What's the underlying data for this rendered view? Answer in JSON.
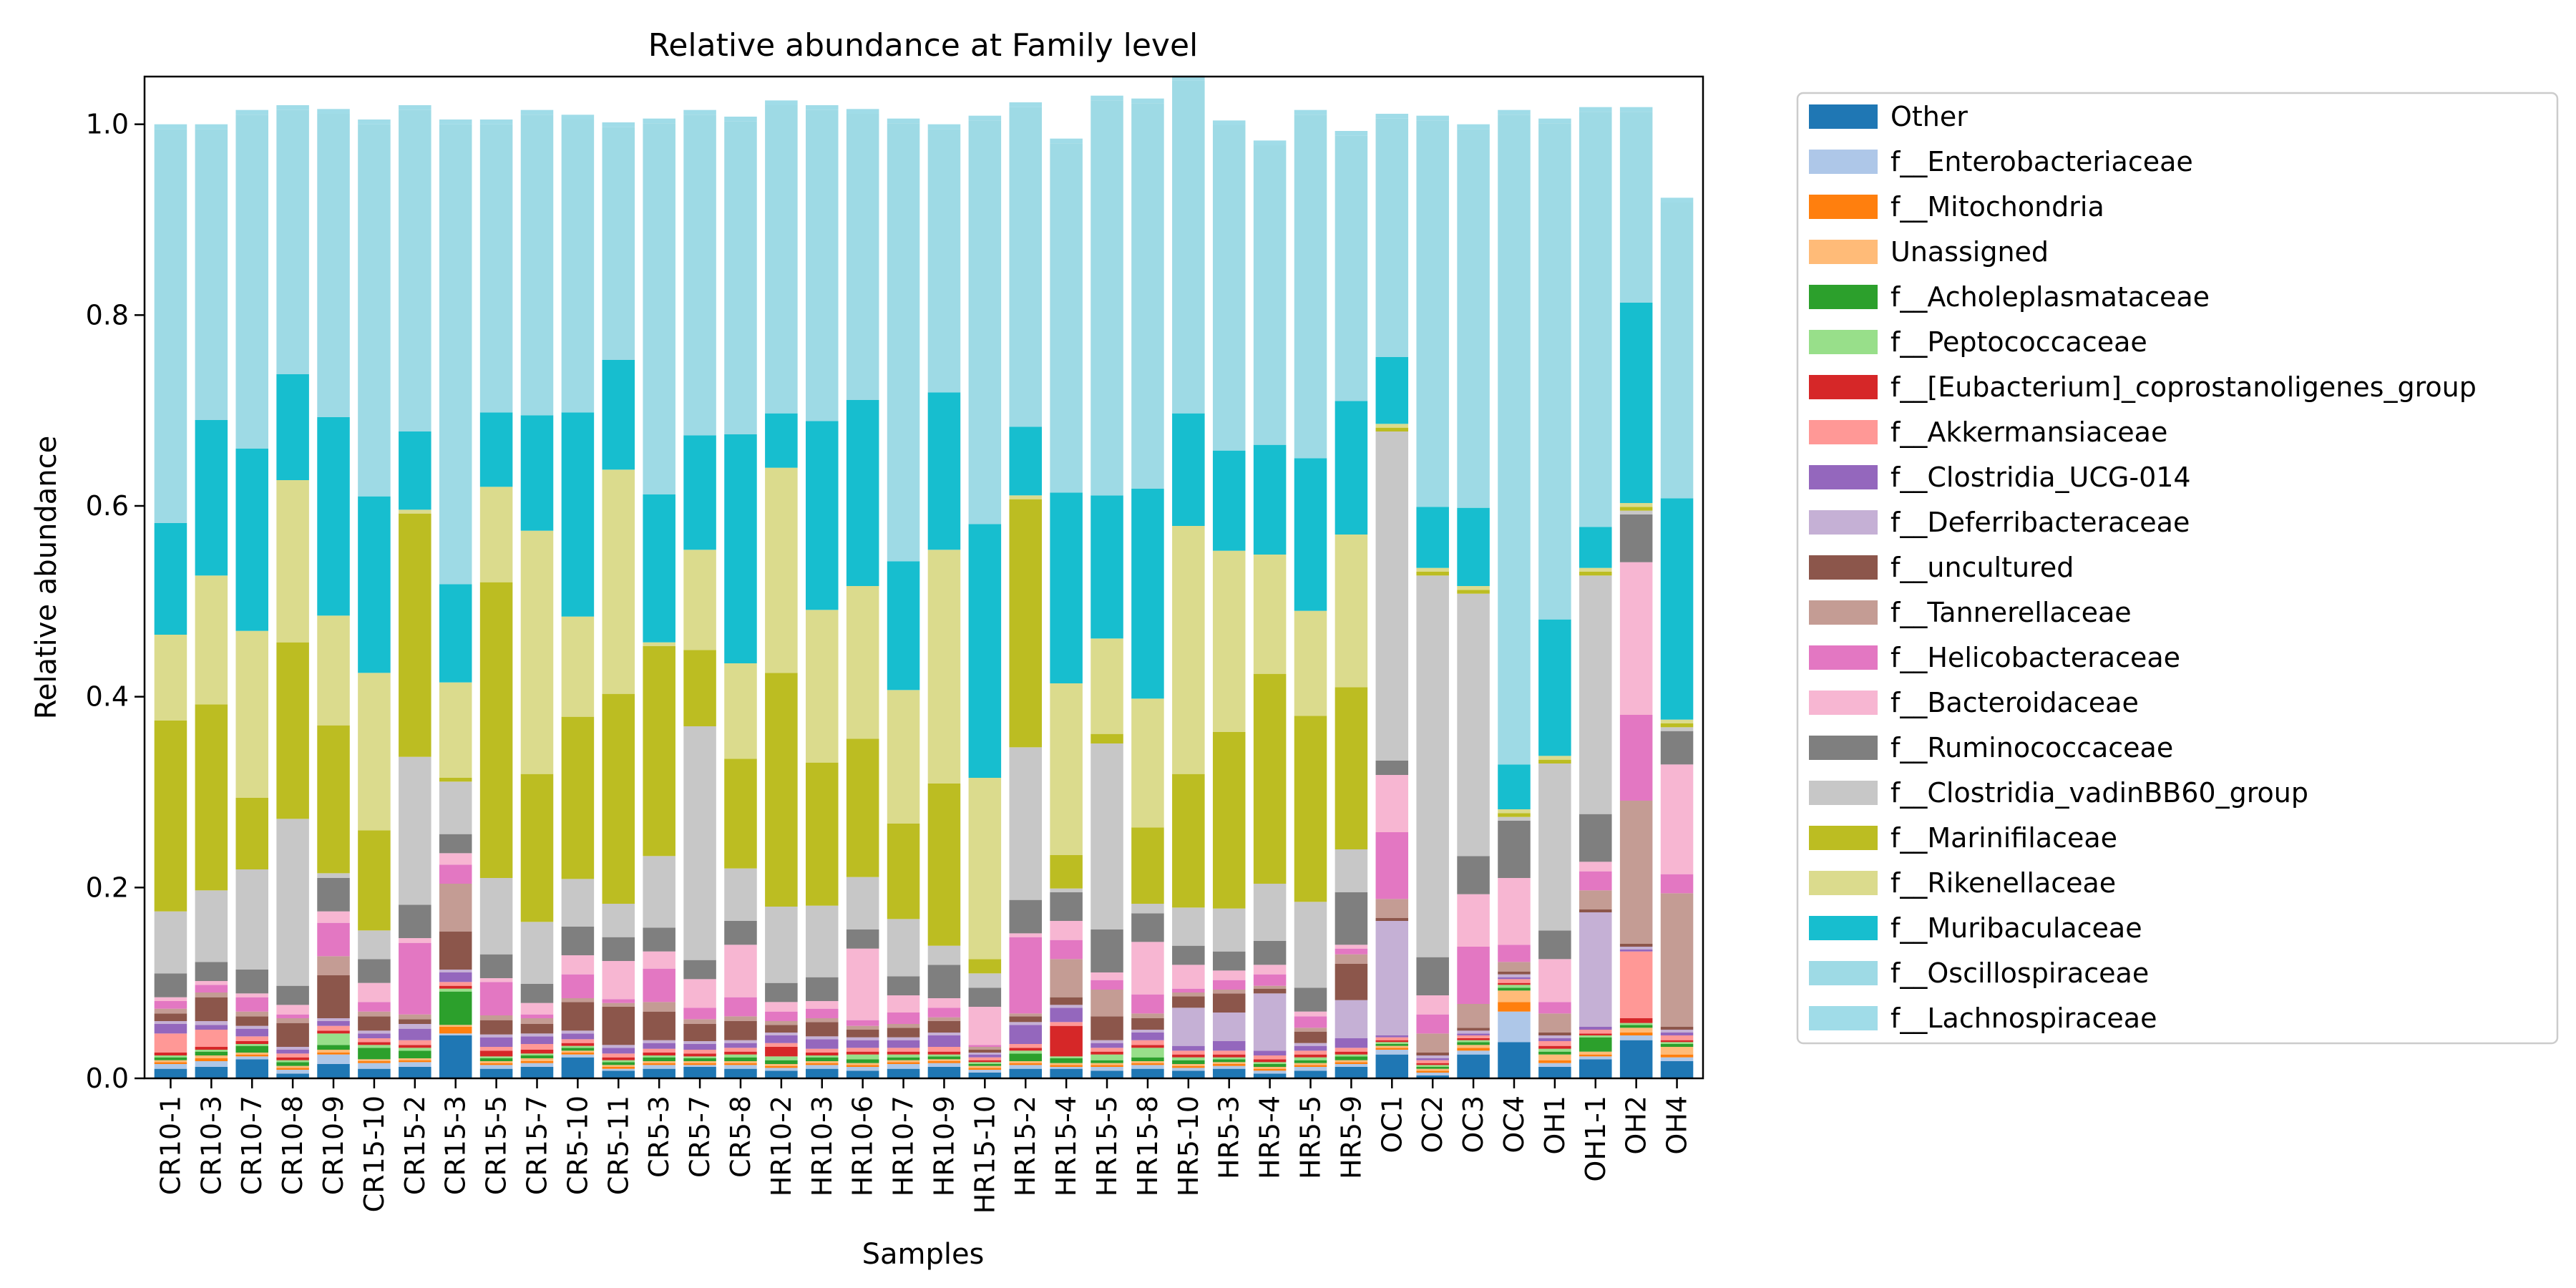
{
  "chart_data": {
    "type": "bar",
    "stacked": true,
    "title": "Relative abundance at Family level",
    "xlabel": "Samples",
    "ylabel": "Relative abundance",
    "ylim": [
      0,
      1.05
    ],
    "yticks": [
      "0.0",
      "0.2",
      "0.4",
      "0.6",
      "0.8",
      "1.0"
    ],
    "legend_position": "outside-right",
    "categories": [
      "CR10-1",
      "CR10-3",
      "CR10-7",
      "CR10-8",
      "CR10-9",
      "CR15-10",
      "CR15-2",
      "CR15-3",
      "CR15-5",
      "CR15-7",
      "CR5-10",
      "CR5-11",
      "CR5-3",
      "CR5-7",
      "CR5-8",
      "HR10-2",
      "HR10-3",
      "HR10-6",
      "HR10-7",
      "HR10-9",
      "HR15-10",
      "HR15-2",
      "HR15-4",
      "HR15-5",
      "HR15-8",
      "HR5-10",
      "HR5-3",
      "HR5-4",
      "HR5-5",
      "HR5-9",
      "OC1",
      "OC2",
      "OC3",
      "OC4",
      "OH1",
      "OH1-1",
      "OH2",
      "OH4"
    ],
    "series": [
      {
        "name": "Other",
        "color": "#1f77b4",
        "values": [
          0.01,
          0.012,
          0.02,
          0.005,
          0.015,
          0.01,
          0.012,
          0.045,
          0.01,
          0.012,
          0.022,
          0.008,
          0.01,
          0.012,
          0.01,
          0.008,
          0.01,
          0.008,
          0.01,
          0.012,
          0.006,
          0.01,
          0.01,
          0.008,
          0.01,
          0.008,
          0.01,
          0.005,
          0.008,
          0.012,
          0.025,
          0.003,
          0.025,
          0.038,
          0.012,
          0.02,
          0.04,
          0.018
        ]
      },
      {
        "name": "f__Enterobacteriaceae",
        "color": "#aec7e8",
        "values": [
          0.005,
          0.006,
          0.003,
          0.004,
          0.01,
          0.006,
          0.005,
          0.002,
          0.004,
          0.004,
          0.003,
          0.002,
          0.004,
          0.002,
          0.004,
          0.003,
          0.004,
          0.004,
          0.005,
          0.004,
          0.003,
          0.004,
          0.002,
          0.004,
          0.004,
          0.003,
          0.003,
          0.003,
          0.004,
          0.003,
          0.005,
          0.003,
          0.004,
          0.032,
          0.004,
          0.003,
          0.005,
          0.004
        ]
      },
      {
        "name": "f__Mitochondria",
        "color": "#ff7f0e",
        "values": [
          0.002,
          0.003,
          0.002,
          0.002,
          0.002,
          0.002,
          0.002,
          0.007,
          0.002,
          0.002,
          0.002,
          0.002,
          0.002,
          0.002,
          0.002,
          0.002,
          0.002,
          0.002,
          0.002,
          0.002,
          0.002,
          0.002,
          0.002,
          0.002,
          0.002,
          0.002,
          0.002,
          0.002,
          0.002,
          0.002,
          0.002,
          0.002,
          0.003,
          0.01,
          0.003,
          0.002,
          0.003,
          0.003
        ]
      },
      {
        "name": "Unassigned",
        "color": "#ffbb78",
        "values": [
          0.002,
          0.003,
          0.002,
          0.002,
          0.003,
          0.002,
          0.002,
          0.002,
          0.002,
          0.003,
          0.002,
          0.002,
          0.002,
          0.002,
          0.002,
          0.002,
          0.002,
          0.002,
          0.002,
          0.002,
          0.002,
          0.002,
          0.002,
          0.002,
          0.002,
          0.002,
          0.002,
          0.002,
          0.002,
          0.002,
          0.002,
          0.002,
          0.003,
          0.012,
          0.006,
          0.003,
          0.005,
          0.008
        ]
      },
      {
        "name": "f__Acholeplasmataceae",
        "color": "#2ca02c",
        "values": [
          0.003,
          0.004,
          0.007,
          0.004,
          0.005,
          0.012,
          0.008,
          0.035,
          0.003,
          0.003,
          0.003,
          0.003,
          0.004,
          0.003,
          0.004,
          0.004,
          0.004,
          0.004,
          0.003,
          0.003,
          0.002,
          0.008,
          0.005,
          0.003,
          0.004,
          0.004,
          0.003,
          0.003,
          0.003,
          0.004,
          0.002,
          0.002,
          0.003,
          0.003,
          0.003,
          0.015,
          0.003,
          0.003
        ]
      },
      {
        "name": "f__Peptococcaceae",
        "color": "#98df8a",
        "values": [
          0.002,
          0.002,
          0.002,
          0.002,
          0.012,
          0.003,
          0.003,
          0.003,
          0.002,
          0.002,
          0.002,
          0.002,
          0.002,
          0.002,
          0.003,
          0.004,
          0.002,
          0.005,
          0.003,
          0.002,
          0.002,
          0.003,
          0.002,
          0.006,
          0.01,
          0.003,
          0.002,
          0.002,
          0.003,
          0.002,
          0.002,
          0.002,
          0.002,
          0.003,
          0.003,
          0.002,
          0.002,
          0.002
        ]
      },
      {
        "name": "f__[Eubacterium]_coprostanoligenes_group",
        "color": "#d62728",
        "values": [
          0.003,
          0.003,
          0.003,
          0.003,
          0.003,
          0.003,
          0.003,
          0.003,
          0.006,
          0.004,
          0.003,
          0.003,
          0.003,
          0.003,
          0.003,
          0.01,
          0.003,
          0.003,
          0.003,
          0.003,
          0.002,
          0.003,
          0.032,
          0.003,
          0.003,
          0.003,
          0.003,
          0.003,
          0.003,
          0.003,
          0.002,
          0.002,
          0.002,
          0.002,
          0.003,
          0.002,
          0.005,
          0.002
        ]
      },
      {
        "name": "f__Akkermansiaceae",
        "color": "#ff9896",
        "values": [
          0.02,
          0.018,
          0.005,
          0.004,
          0.005,
          0.004,
          0.005,
          0.004,
          0.004,
          0.006,
          0.004,
          0.004,
          0.004,
          0.004,
          0.004,
          0.004,
          0.004,
          0.004,
          0.004,
          0.005,
          0.003,
          0.004,
          0.004,
          0.004,
          0.005,
          0.004,
          0.004,
          0.004,
          0.004,
          0.004,
          0.003,
          0.003,
          0.003,
          0.004,
          0.005,
          0.004,
          0.07,
          0.005
        ]
      },
      {
        "name": "f__Clostridia_UCG-014",
        "color": "#9467bd",
        "values": [
          0.01,
          0.005,
          0.008,
          0.004,
          0.005,
          0.005,
          0.012,
          0.01,
          0.01,
          0.008,
          0.006,
          0.006,
          0.006,
          0.006,
          0.005,
          0.008,
          0.01,
          0.008,
          0.008,
          0.012,
          0.003,
          0.02,
          0.015,
          0.005,
          0.008,
          0.005,
          0.01,
          0.005,
          0.005,
          0.01,
          0.002,
          0.002,
          0.002,
          0.002,
          0.003,
          0.003,
          0.002,
          0.003
        ]
      },
      {
        "name": "f__Deferribacteraceae",
        "color": "#c5b0d5",
        "values": [
          0.003,
          0.004,
          0.003,
          0.003,
          0.003,
          0.003,
          0.005,
          0.003,
          0.003,
          0.003,
          0.003,
          0.003,
          0.003,
          0.003,
          0.003,
          0.003,
          0.003,
          0.003,
          0.003,
          0.003,
          0.002,
          0.003,
          0.003,
          0.003,
          0.003,
          0.04,
          0.03,
          0.06,
          0.003,
          0.04,
          0.12,
          0.003,
          0.003,
          0.003,
          0.003,
          0.12,
          0.003,
          0.003
        ]
      },
      {
        "name": "f__uncultured",
        "color": "#8c564b",
        "values": [
          0.008,
          0.025,
          0.01,
          0.025,
          0.045,
          0.015,
          0.005,
          0.04,
          0.015,
          0.01,
          0.03,
          0.04,
          0.03,
          0.018,
          0.02,
          0.008,
          0.015,
          0.008,
          0.01,
          0.012,
          0.003,
          0.006,
          0.008,
          0.025,
          0.012,
          0.012,
          0.02,
          0.005,
          0.012,
          0.038,
          0.003,
          0.003,
          0.003,
          0.003,
          0.003,
          0.003,
          0.003,
          0.003
        ]
      },
      {
        "name": "f__Tannerellaceae",
        "color": "#c49c94",
        "values": [
          0.005,
          0.005,
          0.005,
          0.005,
          0.02,
          0.005,
          0.005,
          0.05,
          0.005,
          0.006,
          0.004,
          0.004,
          0.01,
          0.005,
          0.005,
          0.004,
          0.004,
          0.004,
          0.004,
          0.004,
          0.003,
          0.003,
          0.04,
          0.028,
          0.005,
          0.004,
          0.004,
          0.003,
          0.004,
          0.01,
          0.02,
          0.02,
          0.025,
          0.01,
          0.02,
          0.02,
          0.15,
          0.14
        ]
      },
      {
        "name": "f__Helicobacteraceae",
        "color": "#e377c2",
        "values": [
          0.008,
          0.008,
          0.015,
          0.004,
          0.035,
          0.01,
          0.075,
          0.02,
          0.035,
          0.004,
          0.025,
          0.004,
          0.035,
          0.012,
          0.02,
          0.01,
          0.01,
          0.006,
          0.012,
          0.01,
          0.002,
          0.08,
          0.02,
          0.01,
          0.02,
          0.004,
          0.01,
          0.012,
          0.012,
          0.006,
          0.07,
          0.02,
          0.06,
          0.018,
          0.012,
          0.02,
          0.09,
          0.02
        ]
      },
      {
        "name": "f__Bacteroidaceae",
        "color": "#f7b6d2",
        "values": [
          0.004,
          0.004,
          0.004,
          0.01,
          0.012,
          0.02,
          0.005,
          0.012,
          0.004,
          0.012,
          0.02,
          0.04,
          0.018,
          0.03,
          0.055,
          0.01,
          0.008,
          0.075,
          0.018,
          0.01,
          0.04,
          0.004,
          0.02,
          0.008,
          0.055,
          0.025,
          0.01,
          0.01,
          0.005,
          0.004,
          0.06,
          0.02,
          0.055,
          0.07,
          0.045,
          0.01,
          0.16,
          0.115
        ]
      },
      {
        "name": "f__Ruminococcaceae",
        "color": "#7f7f7f",
        "values": [
          0.025,
          0.02,
          0.025,
          0.02,
          0.035,
          0.025,
          0.035,
          0.02,
          0.025,
          0.02,
          0.03,
          0.025,
          0.025,
          0.02,
          0.025,
          0.02,
          0.025,
          0.02,
          0.02,
          0.035,
          0.02,
          0.035,
          0.03,
          0.045,
          0.03,
          0.02,
          0.02,
          0.025,
          0.025,
          0.055,
          0.015,
          0.04,
          0.04,
          0.06,
          0.03,
          0.05,
          0.05,
          0.035
        ]
      },
      {
        "name": "f__Clostridia_vadinBB60_group",
        "color": "#c7c7c7",
        "values": [
          0.065,
          0.075,
          0.105,
          0.175,
          0.005,
          0.03,
          0.155,
          0.055,
          0.08,
          0.065,
          0.05,
          0.035,
          0.075,
          0.245,
          0.055,
          0.08,
          0.075,
          0.055,
          0.06,
          0.02,
          0.015,
          0.16,
          0.004,
          0.195,
          0.01,
          0.04,
          0.045,
          0.06,
          0.09,
          0.045,
          0.345,
          0.4,
          0.275,
          0.004,
          0.175,
          0.25,
          0.004,
          0.004
        ]
      },
      {
        "name": "f__Marinifilaceae",
        "color": "#bcbd22",
        "values": [
          0.2,
          0.195,
          0.075,
          0.185,
          0.155,
          0.105,
          0.255,
          0.004,
          0.31,
          0.155,
          0.17,
          0.22,
          0.22,
          0.08,
          0.115,
          0.245,
          0.15,
          0.145,
          0.1,
          0.17,
          0.015,
          0.26,
          0.035,
          0.01,
          0.08,
          0.14,
          0.185,
          0.22,
          0.195,
          0.17,
          0.004,
          0.004,
          0.004,
          0.004,
          0.004,
          0.004,
          0.004,
          0.004
        ]
      },
      {
        "name": "f__Rikenellaceae",
        "color": "#dbdb8d",
        "values": [
          0.09,
          0.135,
          0.175,
          0.17,
          0.115,
          0.165,
          0.004,
          0.1,
          0.1,
          0.255,
          0.105,
          0.235,
          0.004,
          0.105,
          0.1,
          0.215,
          0.16,
          0.16,
          0.14,
          0.245,
          0.19,
          0.004,
          0.18,
          0.1,
          0.135,
          0.26,
          0.19,
          0.125,
          0.11,
          0.16,
          0.004,
          0.004,
          0.004,
          0.004,
          0.004,
          0.004,
          0.004,
          0.004
        ]
      },
      {
        "name": "f__Muribaculaceae",
        "color": "#17becf",
        "values": [
          0.117,
          0.163,
          0.191,
          0.111,
          0.208,
          0.185,
          0.082,
          0.103,
          0.078,
          0.121,
          0.214,
          0.115,
          0.155,
          0.12,
          0.24,
          0.057,
          0.198,
          0.195,
          0.135,
          0.165,
          0.266,
          0.072,
          0.2,
          0.15,
          0.22,
          0.118,
          0.105,
          0.115,
          0.16,
          0.14,
          0.07,
          0.064,
          0.082,
          0.047,
          0.143,
          0.043,
          0.21,
          0.232
        ]
      },
      {
        "name": "f__Oscillospiraceae",
        "color": "#9edae5",
        "values": [
          0.413,
          0.305,
          0.35,
          0.277,
          0.318,
          0.39,
          0.337,
          0.482,
          0.302,
          0.315,
          0.307,
          0.244,
          0.389,
          0.336,
          0.328,
          0.323,
          0.326,
          0.3,
          0.459,
          0.276,
          0.423,
          0.335,
          0.366,
          0.414,
          0.404,
          0.349,
          0.341,
          0.314,
          0.36,
          0.278,
          0.25,
          0.405,
          0.397,
          0.681,
          0.52,
          0.435,
          0.2,
          0.31
        ]
      },
      {
        "name": "f__Lachnospiraceae",
        "color": "#a0dce8",
        "values": [
          0.005,
          0.005,
          0.005,
          0.005,
          0.005,
          0.005,
          0.005,
          0.005,
          0.005,
          0.005,
          0.005,
          0.005,
          0.005,
          0.005,
          0.005,
          0.005,
          0.005,
          0.005,
          0.005,
          0.005,
          0.005,
          0.005,
          0.005,
          0.005,
          0.005,
          0.005,
          0.005,
          0.005,
          0.005,
          0.005,
          0.005,
          0.005,
          0.005,
          0.005,
          0.005,
          0.005,
          0.005,
          0.005
        ]
      }
    ]
  }
}
